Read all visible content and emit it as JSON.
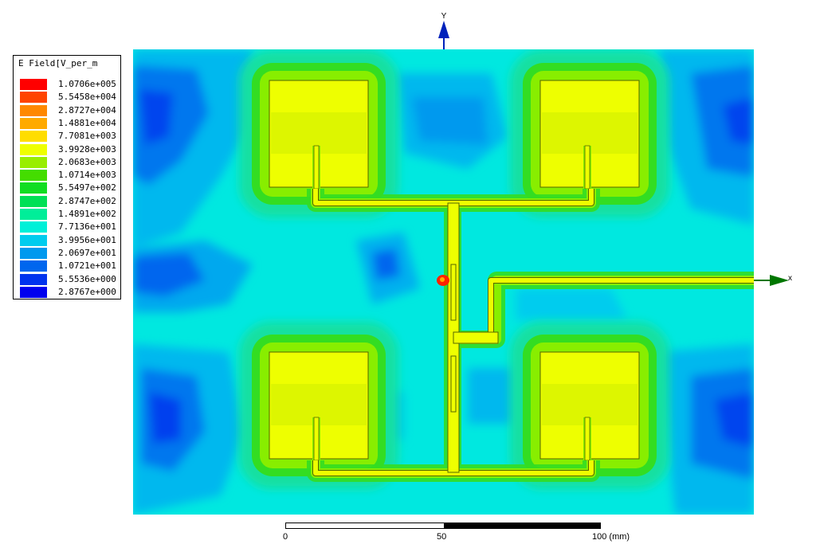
{
  "legend": {
    "title": "E Field[V_per_m",
    "items": [
      {
        "value": "1.0706e+005",
        "color": "#ff0000"
      },
      {
        "value": "5.5458e+004",
        "color": "#ff4400"
      },
      {
        "value": "2.8727e+004",
        "color": "#ff8800"
      },
      {
        "value": "1.4881e+004",
        "color": "#ffaa00"
      },
      {
        "value": "7.7081e+003",
        "color": "#ffdd00"
      },
      {
        "value": "3.9928e+003",
        "color": "#eeff00"
      },
      {
        "value": "2.0683e+003",
        "color": "#99ee00"
      },
      {
        "value": "1.0714e+003",
        "color": "#44dd00"
      },
      {
        "value": "5.5497e+002",
        "color": "#11dd22"
      },
      {
        "value": "2.8747e+002",
        "color": "#00e055"
      },
      {
        "value": "1.4891e+002",
        "color": "#00ee99"
      },
      {
        "value": "7.7136e+001",
        "color": "#00f0d8"
      },
      {
        "value": "3.9956e+001",
        "color": "#00ccee"
      },
      {
        "value": "2.0697e+001",
        "color": "#0099ee"
      },
      {
        "value": "1.0721e+001",
        "color": "#0066ee"
      },
      {
        "value": "5.5536e+000",
        "color": "#0033ee"
      },
      {
        "value": "2.8767e+000",
        "color": "#0000ee"
      }
    ]
  },
  "axes": {
    "x_label": "x",
    "y_label": "Y"
  },
  "scale_bar": {
    "tick_0": "0",
    "tick_mid": "50",
    "tick_end": "100 (mm)"
  }
}
